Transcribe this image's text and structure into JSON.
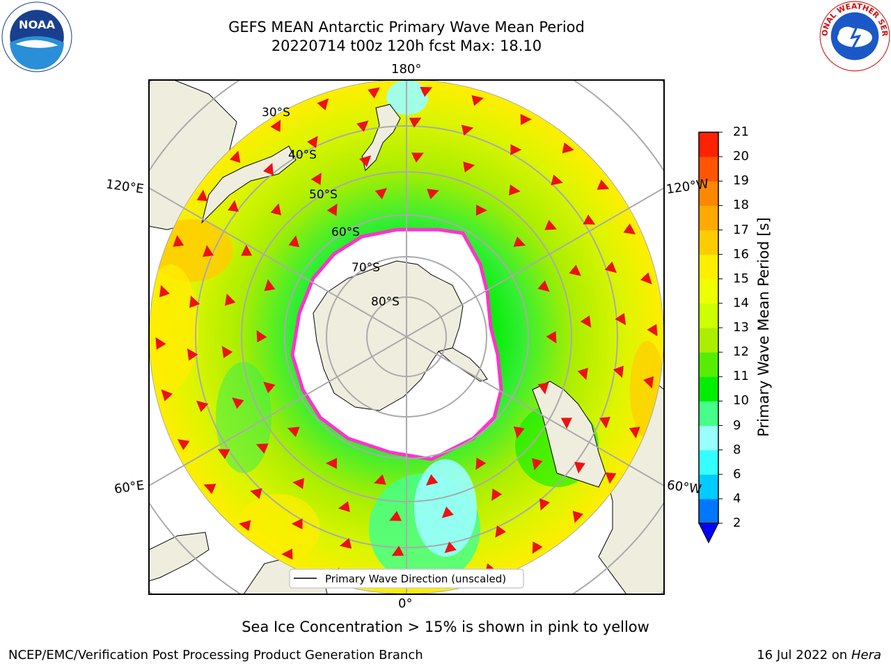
{
  "header": {
    "title_line1": "GEFS MEAN Antarctic Primary Wave Mean Period",
    "title_line2": "20220714 t00z 120h fcst   Max: 18.10"
  },
  "logos": {
    "left": "noaa-logo",
    "left_text": "NOAA",
    "left_ring_text": "NATIONAL OCEANIC AND ATMOSPHERIC ADMINISTRATION · U.S. DEPARTMENT OF COMMERCE",
    "right": "nws-logo",
    "right_ring_text": "NATIONAL WEATHER SERVICE"
  },
  "map": {
    "projection": "south-polar-stereographic",
    "longitude_labels": {
      "top": "180°",
      "bottom": "0°",
      "left_upper": "120°E",
      "left_lower": "60°E",
      "right_upper": "120°W",
      "right_lower": "60°W"
    },
    "latitude_labels": [
      "30°S",
      "40°S",
      "50°S",
      "60°S",
      "70°S",
      "80°S"
    ],
    "legend": "Primary Wave Direction (unscaled)",
    "note": "Sea Ice Concentration > 15% is shown in pink to yellow",
    "colors": {
      "land": "#efedde",
      "ocean_low": "#44ff88",
      "ocean_mid": "#ccff00",
      "ocean_high": "#ffe600",
      "ice_edge": "#ff33cc",
      "arrow": "#ee1111"
    }
  },
  "colorbar": {
    "title": "Primary Wave Mean Period [s]",
    "ticks": [
      "2",
      "4",
      "6",
      "8",
      "9",
      "10",
      "11",
      "12",
      "13",
      "14",
      "15",
      "16",
      "17",
      "18",
      "19",
      "20",
      "21"
    ],
    "colors": [
      "#0077ff",
      "#00ccff",
      "#33ffff",
      "#99ffff",
      "#44ff88",
      "#00ee00",
      "#55ee00",
      "#aaee00",
      "#ccff00",
      "#eeff00",
      "#ffee00",
      "#ffcc00",
      "#ffaa00",
      "#ff8800",
      "#ff5500",
      "#ff2200"
    ],
    "extend_color": "#0000ff"
  },
  "footer": {
    "left": "NCEP/EMC/Verification Post Processing Product Generation Branch",
    "right_prefix": "16 Jul 2022 on",
    "right_host": "Hera"
  }
}
